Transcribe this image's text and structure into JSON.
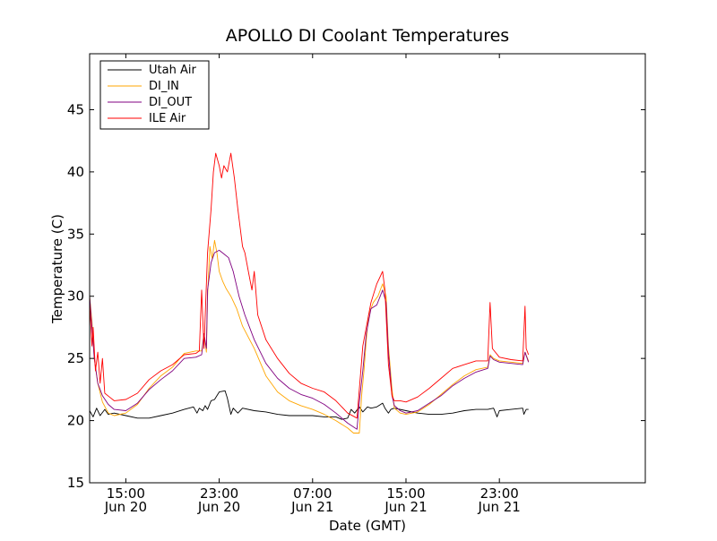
{
  "chart_data": {
    "type": "line",
    "title": "APOLLO DI Coolant Temperatures",
    "xlabel": "Date (GMT)",
    "ylabel": "Temperature (C)",
    "ylim": [
      15,
      49.5
    ],
    "xlim_hours": [
      11.9,
      59.5
    ],
    "y_ticks": [
      15,
      20,
      25,
      30,
      35,
      40,
      45
    ],
    "x_ticks": [
      {
        "hour": 15,
        "time": "15:00",
        "date": "Jun 20"
      },
      {
        "hour": 23,
        "time": "23:00",
        "date": "Jun 20"
      },
      {
        "hour": 31,
        "time": "07:00",
        "date": "Jun 21"
      },
      {
        "hour": 39,
        "time": "15:00",
        "date": "Jun 21"
      },
      {
        "hour": 47,
        "time": "23:00",
        "date": "Jun 21"
      }
    ],
    "legend_position": "top-left",
    "series": [
      {
        "name": "Utah Air",
        "color": "#000000",
        "points": [
          [
            11.9,
            20.8
          ],
          [
            12.2,
            20.3
          ],
          [
            12.5,
            21.0
          ],
          [
            12.8,
            20.4
          ],
          [
            13.2,
            20.9
          ],
          [
            13.5,
            20.5
          ],
          [
            14.0,
            20.6
          ],
          [
            15.0,
            20.4
          ],
          [
            16.0,
            20.2
          ],
          [
            17.0,
            20.2
          ],
          [
            18.0,
            20.4
          ],
          [
            19.0,
            20.6
          ],
          [
            20.0,
            20.9
          ],
          [
            20.8,
            21.1
          ],
          [
            21.1,
            20.6
          ],
          [
            21.3,
            21.0
          ],
          [
            21.6,
            20.8
          ],
          [
            21.8,
            21.2
          ],
          [
            22.0,
            20.9
          ],
          [
            22.3,
            21.6
          ],
          [
            22.6,
            21.7
          ],
          [
            23.0,
            22.3
          ],
          [
            23.5,
            22.4
          ],
          [
            23.7,
            21.8
          ],
          [
            24.0,
            20.5
          ],
          [
            24.2,
            21.0
          ],
          [
            24.6,
            20.6
          ],
          [
            25.0,
            21.0
          ],
          [
            26.0,
            20.8
          ],
          [
            27.0,
            20.7
          ],
          [
            28.0,
            20.5
          ],
          [
            29.0,
            20.4
          ],
          [
            30.0,
            20.4
          ],
          [
            31.0,
            20.4
          ],
          [
            32.0,
            20.3
          ],
          [
            33.0,
            20.3
          ],
          [
            33.5,
            20.1
          ],
          [
            34.0,
            20.2
          ],
          [
            34.3,
            20.9
          ],
          [
            34.6,
            20.6
          ],
          [
            35.0,
            21.1
          ],
          [
            35.3,
            20.7
          ],
          [
            35.7,
            21.1
          ],
          [
            36.0,
            21.0
          ],
          [
            36.5,
            21.1
          ],
          [
            37.0,
            21.4
          ],
          [
            37.2,
            21.0
          ],
          [
            37.5,
            20.6
          ],
          [
            37.7,
            20.9
          ],
          [
            38.0,
            21.0
          ],
          [
            39.0,
            20.8
          ],
          [
            40.0,
            20.6
          ],
          [
            41.0,
            20.5
          ],
          [
            42.0,
            20.5
          ],
          [
            43.0,
            20.6
          ],
          [
            44.0,
            20.8
          ],
          [
            45.0,
            20.9
          ],
          [
            46.0,
            20.9
          ],
          [
            46.5,
            21.0
          ],
          [
            46.8,
            20.3
          ],
          [
            47.0,
            20.8
          ],
          [
            48.0,
            20.9
          ],
          [
            49.0,
            21.0
          ],
          [
            49.1,
            20.5
          ],
          [
            49.3,
            20.9
          ],
          [
            49.5,
            20.9
          ]
        ]
      },
      {
        "name": "DI_IN",
        "color": "#ffa500",
        "points": [
          [
            11.9,
            30.0
          ],
          [
            12.1,
            28.0
          ],
          [
            12.3,
            25.0
          ],
          [
            12.6,
            23.0
          ],
          [
            13.0,
            21.5
          ],
          [
            13.5,
            20.6
          ],
          [
            14.0,
            20.4
          ],
          [
            15.0,
            20.6
          ],
          [
            16.0,
            21.3
          ],
          [
            17.0,
            22.6
          ],
          [
            18.0,
            23.6
          ],
          [
            19.0,
            24.3
          ],
          [
            20.0,
            25.4
          ],
          [
            21.0,
            25.6
          ],
          [
            21.5,
            25.6
          ],
          [
            21.7,
            27.0
          ],
          [
            21.9,
            25.5
          ],
          [
            22.0,
            30.0
          ],
          [
            22.2,
            34.0
          ],
          [
            22.4,
            33.0
          ],
          [
            22.6,
            34.5
          ],
          [
            22.8,
            33.5
          ],
          [
            23.0,
            32.0
          ],
          [
            23.3,
            31.2
          ],
          [
            23.6,
            30.6
          ],
          [
            24.0,
            30.0
          ],
          [
            24.5,
            29.0
          ],
          [
            25.0,
            27.6
          ],
          [
            26.0,
            25.8
          ],
          [
            27.0,
            23.6
          ],
          [
            28.0,
            22.3
          ],
          [
            29.0,
            21.6
          ],
          [
            30.0,
            21.2
          ],
          [
            31.0,
            20.9
          ],
          [
            32.0,
            20.5
          ],
          [
            33.0,
            20.0
          ],
          [
            34.0,
            19.4
          ],
          [
            34.5,
            19.0
          ],
          [
            35.0,
            19.0
          ],
          [
            35.2,
            22.0
          ],
          [
            35.4,
            24.0
          ],
          [
            35.6,
            26.5
          ],
          [
            35.8,
            28.5
          ],
          [
            36.2,
            29.5
          ],
          [
            36.6,
            30.0
          ],
          [
            37.0,
            31.0
          ],
          [
            37.3,
            30.0
          ],
          [
            37.5,
            26.0
          ],
          [
            37.8,
            22.5
          ],
          [
            38.0,
            21.0
          ],
          [
            38.5,
            20.6
          ],
          [
            39.0,
            20.5
          ],
          [
            40.0,
            20.7
          ],
          [
            41.0,
            21.3
          ],
          [
            42.0,
            22.1
          ],
          [
            43.0,
            22.9
          ],
          [
            44.0,
            23.6
          ],
          [
            45.0,
            24.1
          ],
          [
            46.0,
            24.3
          ],
          [
            46.2,
            25.3
          ],
          [
            46.5,
            25.0
          ],
          [
            47.0,
            24.8
          ],
          [
            48.0,
            24.7
          ],
          [
            49.0,
            24.6
          ],
          [
            49.2,
            25.5
          ],
          [
            49.5,
            24.8
          ]
        ]
      },
      {
        "name": "DI_OUT",
        "color": "#800080",
        "points": [
          [
            11.9,
            30.0
          ],
          [
            12.1,
            27.5
          ],
          [
            12.3,
            25.0
          ],
          [
            12.6,
            23.0
          ],
          [
            13.0,
            22.0
          ],
          [
            13.5,
            21.3
          ],
          [
            14.0,
            20.9
          ],
          [
            15.0,
            20.8
          ],
          [
            16.0,
            21.4
          ],
          [
            17.0,
            22.5
          ],
          [
            18.0,
            23.3
          ],
          [
            19.0,
            24.0
          ],
          [
            20.0,
            25.0
          ],
          [
            21.0,
            25.1
          ],
          [
            21.5,
            25.3
          ],
          [
            21.7,
            27.0
          ],
          [
            21.9,
            25.8
          ],
          [
            22.0,
            30.5
          ],
          [
            22.3,
            32.7
          ],
          [
            22.6,
            33.5
          ],
          [
            23.0,
            33.7
          ],
          [
            23.4,
            33.4
          ],
          [
            23.8,
            33.1
          ],
          [
            24.2,
            32.0
          ],
          [
            24.7,
            30.0
          ],
          [
            25.2,
            28.5
          ],
          [
            26.0,
            26.5
          ],
          [
            27.0,
            24.6
          ],
          [
            28.0,
            23.4
          ],
          [
            29.0,
            22.6
          ],
          [
            30.0,
            22.1
          ],
          [
            31.0,
            21.8
          ],
          [
            32.0,
            21.3
          ],
          [
            33.0,
            20.6
          ],
          [
            34.0,
            19.8
          ],
          [
            34.8,
            19.3
          ],
          [
            35.0,
            21.5
          ],
          [
            35.3,
            24.0
          ],
          [
            35.6,
            27.0
          ],
          [
            36.0,
            29.0
          ],
          [
            36.5,
            29.3
          ],
          [
            37.0,
            30.5
          ],
          [
            37.3,
            29.5
          ],
          [
            37.5,
            25.5
          ],
          [
            37.8,
            22.0
          ],
          [
            38.0,
            21.2
          ],
          [
            38.5,
            20.8
          ],
          [
            39.0,
            20.6
          ],
          [
            40.0,
            20.8
          ],
          [
            41.0,
            21.4
          ],
          [
            42.0,
            22.0
          ],
          [
            43.0,
            22.8
          ],
          [
            44.0,
            23.4
          ],
          [
            45.0,
            23.9
          ],
          [
            46.0,
            24.2
          ],
          [
            46.2,
            25.2
          ],
          [
            46.5,
            24.9
          ],
          [
            47.0,
            24.7
          ],
          [
            48.0,
            24.6
          ],
          [
            49.0,
            24.5
          ],
          [
            49.2,
            25.5
          ],
          [
            49.5,
            24.7
          ]
        ]
      },
      {
        "name": "ILE Air",
        "color": "#ff0000",
        "points": [
          [
            11.9,
            29.5
          ],
          [
            12.1,
            26.0
          ],
          [
            12.2,
            27.5
          ],
          [
            12.4,
            24.0
          ],
          [
            12.6,
            25.5
          ],
          [
            12.8,
            23.0
          ],
          [
            13.0,
            25.0
          ],
          [
            13.2,
            22.2
          ],
          [
            13.6,
            21.9
          ],
          [
            14.0,
            21.6
          ],
          [
            15.0,
            21.7
          ],
          [
            16.0,
            22.2
          ],
          [
            17.0,
            23.3
          ],
          [
            18.0,
            24.0
          ],
          [
            19.0,
            24.5
          ],
          [
            20.0,
            25.3
          ],
          [
            21.0,
            25.4
          ],
          [
            21.3,
            25.6
          ],
          [
            21.5,
            30.5
          ],
          [
            21.7,
            25.8
          ],
          [
            22.0,
            33.5
          ],
          [
            22.3,
            37.0
          ],
          [
            22.5,
            40.0
          ],
          [
            22.7,
            41.5
          ],
          [
            23.0,
            40.5
          ],
          [
            23.2,
            39.5
          ],
          [
            23.4,
            40.5
          ],
          [
            23.7,
            40.0
          ],
          [
            24.0,
            41.5
          ],
          [
            24.3,
            39.5
          ],
          [
            24.6,
            37.0
          ],
          [
            25.0,
            34.0
          ],
          [
            25.2,
            33.5
          ],
          [
            25.5,
            32.0
          ],
          [
            25.8,
            30.5
          ],
          [
            26.0,
            32.0
          ],
          [
            26.3,
            28.5
          ],
          [
            27.0,
            26.5
          ],
          [
            28.0,
            25.0
          ],
          [
            29.0,
            23.8
          ],
          [
            30.0,
            23.0
          ],
          [
            31.0,
            22.6
          ],
          [
            32.0,
            22.3
          ],
          [
            33.0,
            21.6
          ],
          [
            34.0,
            20.6
          ],
          [
            34.8,
            20.2
          ],
          [
            35.0,
            22.5
          ],
          [
            35.3,
            26.0
          ],
          [
            35.6,
            27.5
          ],
          [
            36.0,
            29.5
          ],
          [
            36.5,
            31.0
          ],
          [
            37.0,
            32.0
          ],
          [
            37.2,
            30.5
          ],
          [
            37.5,
            24.5
          ],
          [
            37.8,
            22.0
          ],
          [
            38.0,
            21.6
          ],
          [
            38.5,
            21.6
          ],
          [
            39.0,
            21.5
          ],
          [
            40.0,
            21.9
          ],
          [
            41.0,
            22.6
          ],
          [
            42.0,
            23.4
          ],
          [
            43.0,
            24.2
          ],
          [
            44.0,
            24.5
          ],
          [
            45.0,
            24.8
          ],
          [
            46.0,
            24.8
          ],
          [
            46.2,
            29.5
          ],
          [
            46.4,
            25.8
          ],
          [
            47.0,
            25.1
          ],
          [
            48.0,
            24.9
          ],
          [
            49.0,
            24.8
          ],
          [
            49.2,
            29.2
          ],
          [
            49.3,
            25.8
          ],
          [
            49.5,
            25.3
          ]
        ]
      }
    ]
  }
}
